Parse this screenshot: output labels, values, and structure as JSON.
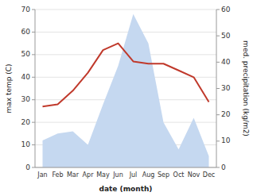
{
  "chart_data": {
    "type": "line",
    "categories": [
      "Jan",
      "Feb",
      "Mar",
      "Apr",
      "May",
      "Jun",
      "Jul",
      "Aug",
      "Sep",
      "Oct",
      "Nov",
      "Dec"
    ],
    "series": [
      {
        "type": "area",
        "color": "#c5d8f0",
        "values": [
          12,
          15,
          16,
          10,
          28,
          45,
          68,
          55,
          20,
          8,
          22,
          5
        ]
      },
      {
        "type": "line",
        "color": "#c0392b",
        "values": [
          27,
          28,
          34,
          42,
          52,
          55,
          47,
          46,
          46,
          43,
          40,
          29
        ]
      }
    ],
    "xlabel": "date (month)",
    "ylabel": "max temp (C)",
    "y2label": "med. precipitation (kg/m2)",
    "ylim": [
      0,
      70
    ],
    "yticks": [
      0,
      10,
      20,
      30,
      40,
      50,
      60,
      70
    ],
    "y2lim": [
      0,
      60
    ],
    "y2ticks": [
      0,
      10,
      20,
      30,
      40,
      50,
      60
    ],
    "grid": true
  }
}
